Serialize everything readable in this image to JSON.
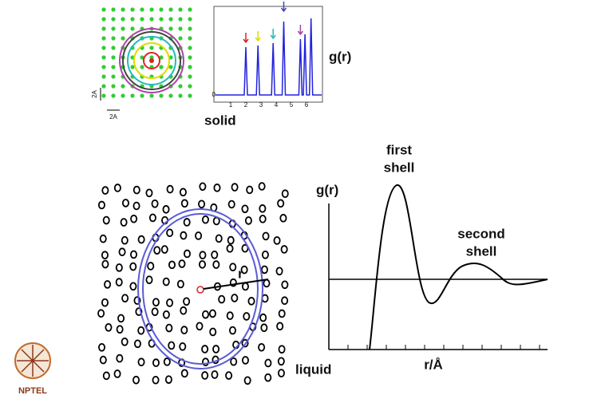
{
  "solid_panel": {
    "scale_labels": [
      "2A",
      "2A"
    ],
    "rdf_plot": {
      "y_label": "g(r)",
      "y_tick": "0",
      "x_ticks": [
        "1",
        "2",
        "3",
        "4",
        "5",
        "6"
      ]
    },
    "caption": "solid"
  },
  "liquid_panel": {
    "radius_label": "r",
    "caption": "liquid",
    "rdf_plot": {
      "y_label": "g(r)",
      "x_label": "r/Å",
      "annotations": [
        {
          "lines": [
            "first",
            "shell"
          ]
        },
        {
          "lines": [
            "second",
            "shell"
          ]
        }
      ]
    }
  },
  "logo": {
    "text": "NPTEL"
  }
}
